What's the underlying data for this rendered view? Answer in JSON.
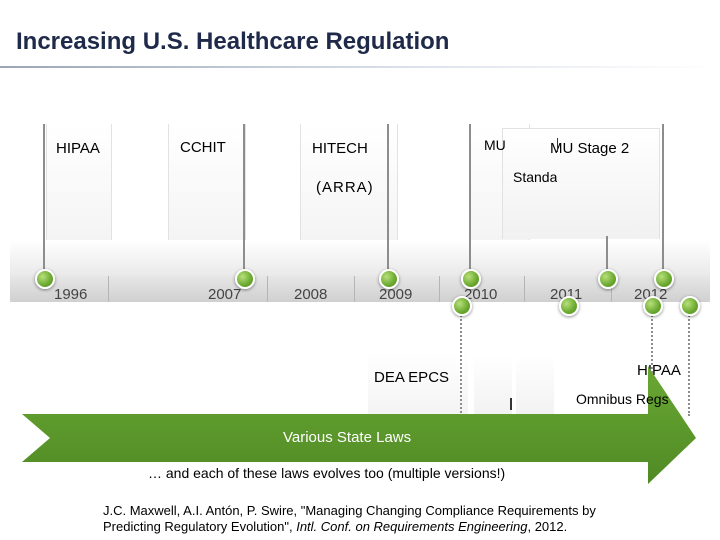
{
  "title": "Increasing U.S. Healthcare Regulation",
  "colors": {
    "accent_green": "#5e9b2c",
    "dot_green": "#7cc03f",
    "title": "#1f2a4a"
  },
  "timeline": {
    "years": [
      "1996",
      "2007",
      "2008",
      "2009",
      "2010",
      "2011",
      "2012"
    ]
  },
  "events_above": {
    "hipaa": "HIPAA",
    "cchit": "CCHIT",
    "hitech": "HITECH",
    "arra": "(ARRA)",
    "mu": "MU",
    "mu_stage2": "MU Stage 2",
    "standards": "Standa"
  },
  "events_below": {
    "dea_epcs": "DEA EPCS",
    "hipaa": "HIPAA",
    "omnibus": "Omnibus Regs"
  },
  "arrow": {
    "label": "Various State Laws"
  },
  "caption": "… and each of these laws evolves too (multiple versions!)",
  "citation": {
    "line1": "J.C. Maxwell, A.I. Antón, P. Swire, \"Managing Changing Compliance Requirements by",
    "line2_a": "Predicting Regulatory Evolution\", ",
    "line2_venue": "Intl. Conf. on Requirements Engineering",
    "line2_b": ", 2012."
  }
}
